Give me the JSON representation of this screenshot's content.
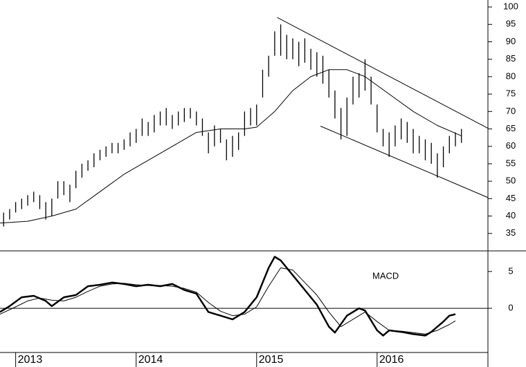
{
  "chart_data": [
    {
      "type": "hilo",
      "color": "#000000",
      "xlim": [
        2012.87,
        2016.92
      ],
      "ylim": [
        30,
        102
      ],
      "yticks": [
        35,
        40,
        45,
        50,
        55,
        60,
        65,
        70,
        75,
        80,
        85,
        90,
        95,
        100
      ],
      "x": [
        2012.9,
        2012.95,
        2013,
        2013.05,
        2013.1,
        2013.15,
        2013.2,
        2013.25,
        2013.3,
        2013.35,
        2013.4,
        2013.45,
        2013.5,
        2013.55,
        2013.6,
        2013.65,
        2013.7,
        2013.75,
        2013.8,
        2013.85,
        2013.9,
        2013.95,
        2014,
        2014.05,
        2014.1,
        2014.15,
        2014.2,
        2014.25,
        2014.3,
        2014.35,
        2014.4,
        2014.45,
        2014.5,
        2014.55,
        2014.6,
        2014.65,
        2014.7,
        2014.75,
        2014.8,
        2014.85,
        2014.9,
        2014.95,
        2015,
        2015.05,
        2015.1,
        2015.15,
        2015.2,
        2015.25,
        2015.3,
        2015.35,
        2015.4,
        2015.45,
        2015.5,
        2015.55,
        2015.6,
        2015.65,
        2015.7,
        2015.75,
        2015.8,
        2015.85,
        2015.9,
        2015.95,
        2016,
        2016.05,
        2016.1,
        2016.15,
        2016.2,
        2016.25,
        2016.3,
        2016.35,
        2016.4,
        2016.45,
        2016.5,
        2016.55,
        2016.6,
        2016.65,
        2016.7
      ],
      "low": [
        37,
        39,
        41,
        42,
        43,
        44,
        42,
        39,
        40,
        45,
        46,
        44,
        48,
        51,
        53,
        54,
        56,
        57,
        58,
        58,
        59,
        60,
        61,
        63,
        63,
        64,
        66,
        66,
        65,
        66,
        67,
        68,
        66,
        63,
        58,
        60,
        61,
        56,
        57,
        59,
        63,
        66,
        66,
        74,
        80,
        86,
        86,
        85,
        85,
        83,
        84,
        82,
        80,
        78,
        74,
        68,
        62,
        63,
        72,
        74,
        76,
        72,
        64,
        60,
        57,
        60,
        62,
        61,
        58,
        58,
        56,
        55,
        51,
        54,
        58,
        60,
        61
      ],
      "high": [
        41,
        42,
        44,
        45,
        46,
        47,
        46,
        44,
        45,
        50,
        50,
        49,
        53,
        55,
        56,
        58,
        59,
        60,
        61,
        61,
        62,
        64,
        65,
        68,
        67,
        69,
        70,
        71,
        69,
        70,
        71,
        71,
        70,
        68,
        64,
        66,
        65,
        62,
        63,
        64,
        70,
        71,
        72,
        82,
        86,
        93,
        95,
        92,
        91,
        90,
        91,
        88,
        87,
        86,
        82,
        76,
        71,
        74,
        80,
        81,
        85,
        80,
        72,
        65,
        64,
        66,
        68,
        67,
        65,
        63,
        62,
        61,
        58,
        60,
        63,
        64,
        65
      ],
      "ma": {
        "x": [
          2012.87,
          2013.1,
          2013.3,
          2013.5,
          2013.7,
          2013.9,
          2014.1,
          2014.3,
          2014.5,
          2014.7,
          2014.9,
          2015.0,
          2015.15,
          2015.3,
          2015.45,
          2015.6,
          2015.75,
          2015.9,
          2016.1,
          2016.3,
          2016.5,
          2016.7
        ],
        "values": [
          38,
          38.5,
          40,
          42,
          47,
          52,
          56,
          60,
          64,
          65,
          65,
          65.5,
          70,
          76,
          80,
          82,
          82,
          80,
          75,
          70,
          66,
          63
        ]
      },
      "trendlines": [
        {
          "x": [
            2015.17,
            2016.92
          ],
          "y": [
            97,
            65.2
          ]
        },
        {
          "x": [
            2015.53,
            2016.92
          ],
          "y": [
            65.8,
            45.3
          ]
        }
      ]
    },
    {
      "type": "line",
      "title": "MACD",
      "color": "#000000",
      "xlim": [
        2012.87,
        2016.92
      ],
      "ylim": [
        -6,
        7.8
      ],
      "yticks": [
        0,
        5
      ],
      "xticks": [
        2013,
        2014,
        2015,
        2016
      ],
      "series": [
        {
          "width": 2.5,
          "x": [
            2012.87,
            2012.95,
            2013.05,
            2013.15,
            2013.25,
            2013.3,
            2013.4,
            2013.5,
            2013.6,
            2013.7,
            2013.8,
            2013.9,
            2014.0,
            2014.1,
            2014.2,
            2014.3,
            2014.4,
            2014.5,
            2014.6,
            2014.7,
            2014.8,
            2014.9,
            2015.0,
            2015.1,
            2015.15,
            2015.2,
            2015.3,
            2015.4,
            2015.5,
            2015.6,
            2015.65,
            2015.75,
            2015.85,
            2015.9,
            2016.0,
            2016.05,
            2016.1,
            2016.2,
            2016.3,
            2016.4,
            2016.45,
            2016.55,
            2016.6,
            2016.65
          ],
          "values": [
            -0.5,
            0.3,
            1.5,
            1.7,
            1.0,
            0.3,
            1.5,
            1.8,
            3.0,
            3.2,
            3.5,
            3.3,
            3.0,
            3.2,
            3.0,
            3.3,
            2.5,
            2.0,
            -0.5,
            -1.0,
            -1.5,
            -0.5,
            1.5,
            5.5,
            7.0,
            6.5,
            4.5,
            2.5,
            0.5,
            -2.5,
            -3.3,
            -1.0,
            0.0,
            -0.3,
            -3.0,
            -3.7,
            -3.0,
            -3.2,
            -3.5,
            -3.7,
            -3.2,
            -1.8,
            -1.0,
            -0.8
          ]
        },
        {
          "width": 1,
          "x": [
            2012.87,
            2013.0,
            2013.1,
            2013.2,
            2013.3,
            2013.4,
            2013.5,
            2013.6,
            2013.7,
            2013.8,
            2013.9,
            2014.0,
            2014.1,
            2014.2,
            2014.3,
            2014.4,
            2014.5,
            2014.6,
            2014.7,
            2014.8,
            2014.9,
            2015.0,
            2015.1,
            2015.2,
            2015.3,
            2015.4,
            2015.5,
            2015.6,
            2015.7,
            2015.8,
            2015.9,
            2016.0,
            2016.1,
            2016.2,
            2016.3,
            2016.4,
            2016.5,
            2016.6,
            2016.65
          ],
          "values": [
            -0.8,
            0.2,
            1.0,
            1.4,
            1.1,
            1.0,
            1.5,
            2.3,
            3.0,
            3.3,
            3.4,
            3.2,
            3.1,
            3.1,
            3.0,
            2.7,
            2.2,
            0.8,
            -0.4,
            -1.0,
            -0.8,
            0.2,
            3.0,
            5.5,
            5.2,
            3.5,
            1.8,
            -0.5,
            -2.5,
            -1.5,
            -0.5,
            -1.8,
            -3.0,
            -3.1,
            -3.3,
            -3.5,
            -3.0,
            -2.2,
            -1.7
          ]
        }
      ]
    }
  ]
}
